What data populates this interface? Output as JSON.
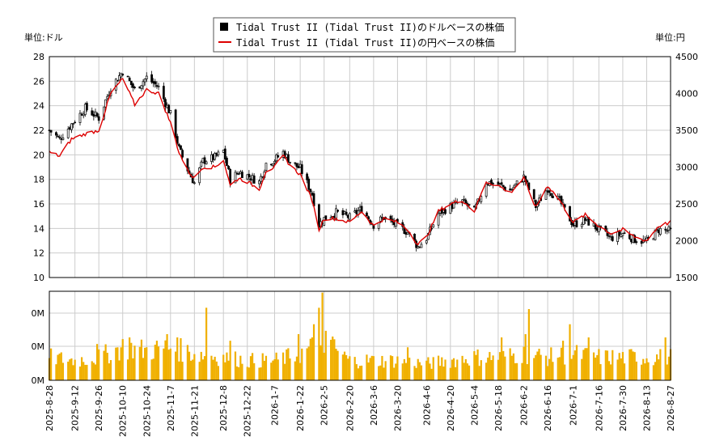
{
  "chart_data": [
    {
      "type": "candlestick+line",
      "legend": [
        {
          "label": "Tidal Trust II (Tidal Trust II)のドルベースの株価",
          "marker": "black-square",
          "color": "#000000"
        },
        {
          "label": "Tidal Trust II (Tidal Trust II)の円ベースの株価",
          "marker": "red-line",
          "color": "#dd0000"
        }
      ],
      "legend_placement": "top-center",
      "left_unit": "単位:ドル",
      "right_unit": "単位:円",
      "y_left": {
        "ylim": [
          10,
          28
        ],
        "ticks": [
          10,
          12,
          14,
          16,
          18,
          20,
          22,
          24,
          26,
          28
        ]
      },
      "y_right": {
        "ylim": [
          1500,
          4500
        ],
        "ticks": [
          1500,
          2000,
          2500,
          3000,
          3500,
          4000,
          4500
        ]
      },
      "x_ticks": [
        "2025-8-28",
        "2025-9-12",
        "2025-9-26",
        "2025-10-10",
        "2025-10-24",
        "2025-11-7",
        "2025-11-21",
        "2025-12-8",
        "2025-12-22",
        "2026-1-7",
        "2026-1-22",
        "2026-2-5",
        "2026-2-20",
        "2026-3-6",
        "2026-3-20",
        "2026-4-6",
        "2026-4-20",
        "2026-5-4",
        "2026-5-18",
        "2026-6-2",
        "2026-6-16",
        "2026-7-1",
        "2026-7-16",
        "2026-7-30",
        "2026-8-13",
        "2026-8-27"
      ],
      "grid": true,
      "usd_close_keypoints": [
        [
          "2025-8-28",
          22.0
        ],
        [
          "2025-9-3",
          21.3
        ],
        [
          "2025-9-10",
          22.5
        ],
        [
          "2025-9-18",
          23.8
        ],
        [
          "2025-9-26",
          23.0
        ],
        [
          "2025-10-3",
          25.5
        ],
        [
          "2025-10-10",
          26.8
        ],
        [
          "2025-10-17",
          25.3
        ],
        [
          "2025-10-24",
          26.3
        ],
        [
          "2025-10-31",
          25.5
        ],
        [
          "2025-11-7",
          23.3
        ],
        [
          "2025-11-12",
          20.5
        ],
        [
          "2025-11-17",
          18.8
        ],
        [
          "2025-11-21",
          17.7
        ],
        [
          "2025-11-26",
          19.5
        ],
        [
          "2025-12-3",
          19.8
        ],
        [
          "2025-12-8",
          20.3
        ],
        [
          "2025-12-12",
          18.0
        ],
        [
          "2025-12-17",
          18.6
        ],
        [
          "2025-12-22",
          18.3
        ],
        [
          "2025-12-29",
          17.8
        ],
        [
          "2026-1-2",
          19.3
        ],
        [
          "2026-1-7",
          19.6
        ],
        [
          "2026-1-12",
          20.2
        ],
        [
          "2026-1-17",
          19.3
        ],
        [
          "2026-1-22",
          18.9
        ],
        [
          "2026-1-29",
          16.8
        ],
        [
          "2026-2-2",
          14.3
        ],
        [
          "2026-2-5",
          14.8
        ],
        [
          "2026-2-12",
          15.3
        ],
        [
          "2026-2-20",
          14.9
        ],
        [
          "2026-2-27",
          15.6
        ],
        [
          "2026-3-6",
          14.3
        ],
        [
          "2026-3-12",
          14.9
        ],
        [
          "2026-3-20",
          14.2
        ],
        [
          "2026-3-26",
          13.7
        ],
        [
          "2026-4-1",
          12.5
        ],
        [
          "2026-4-6",
          13.2
        ],
        [
          "2026-4-13",
          15.2
        ],
        [
          "2026-4-20",
          15.8
        ],
        [
          "2026-4-27",
          16.2
        ],
        [
          "2026-5-4",
          15.4
        ],
        [
          "2026-5-11",
          17.8
        ],
        [
          "2026-5-18",
          17.6
        ],
        [
          "2026-5-25",
          17.1
        ],
        [
          "2026-6-2",
          18.2
        ],
        [
          "2026-6-9",
          15.8
        ],
        [
          "2026-6-16",
          17.3
        ],
        [
          "2026-6-23",
          16.2
        ],
        [
          "2026-7-1",
          14.3
        ],
        [
          "2026-7-8",
          14.7
        ],
        [
          "2026-7-16",
          13.9
        ],
        [
          "2026-7-23",
          13.2
        ],
        [
          "2026-7-30",
          13.6
        ],
        [
          "2026-8-6",
          13.1
        ],
        [
          "2026-8-13",
          12.9
        ],
        [
          "2026-8-20",
          13.9
        ],
        [
          "2026-8-27",
          13.8
        ]
      ],
      "jpy_close_keypoints": [
        [
          "2025-8-28",
          3200
        ],
        [
          "2025-9-3",
          3150
        ],
        [
          "2025-9-10",
          3380
        ],
        [
          "2025-9-18",
          3450
        ],
        [
          "2025-9-26",
          3500
        ],
        [
          "2025-10-3",
          4000
        ],
        [
          "2025-10-10",
          4200
        ],
        [
          "2025-10-17",
          3850
        ],
        [
          "2025-10-24",
          4050
        ],
        [
          "2025-10-31",
          4000
        ],
        [
          "2025-11-7",
          3600
        ],
        [
          "2025-11-12",
          3200
        ],
        [
          "2025-11-17",
          2950
        ],
        [
          "2025-11-21",
          2850
        ],
        [
          "2025-11-26",
          3000
        ],
        [
          "2025-12-3",
          3000
        ],
        [
          "2025-12-8",
          3100
        ],
        [
          "2025-12-12",
          2750
        ],
        [
          "2025-12-17",
          2850
        ],
        [
          "2025-12-22",
          2800
        ],
        [
          "2025-12-29",
          2700
        ],
        [
          "2026-1-2",
          2950
        ],
        [
          "2026-1-7",
          3000
        ],
        [
          "2026-1-12",
          3150
        ],
        [
          "2026-1-17",
          3000
        ],
        [
          "2026-1-22",
          2900
        ],
        [
          "2026-1-29",
          2550
        ],
        [
          "2026-2-2",
          2150
        ],
        [
          "2026-2-5",
          2300
        ],
        [
          "2026-2-12",
          2300
        ],
        [
          "2026-2-20",
          2250
        ],
        [
          "2026-2-27",
          2400
        ],
        [
          "2026-3-6",
          2200
        ],
        [
          "2026-3-12",
          2300
        ],
        [
          "2026-3-20",
          2250
        ],
        [
          "2026-3-26",
          2150
        ],
        [
          "2026-4-1",
          1950
        ],
        [
          "2026-4-6",
          2050
        ],
        [
          "2026-4-13",
          2400
        ],
        [
          "2026-4-20",
          2500
        ],
        [
          "2026-4-27",
          2550
        ],
        [
          "2026-5-4",
          2400
        ],
        [
          "2026-5-11",
          2800
        ],
        [
          "2026-5-18",
          2750
        ],
        [
          "2026-5-25",
          2650
        ],
        [
          "2026-6-2",
          2850
        ],
        [
          "2026-6-9",
          2450
        ],
        [
          "2026-6-16",
          2750
        ],
        [
          "2026-6-23",
          2550
        ],
        [
          "2026-7-1",
          2250
        ],
        [
          "2026-7-8",
          2350
        ],
        [
          "2026-7-16",
          2200
        ],
        [
          "2026-7-23",
          2100
        ],
        [
          "2026-7-30",
          2150
        ],
        [
          "2026-8-6",
          2050
        ],
        [
          "2026-8-13",
          2000
        ],
        [
          "2026-8-20",
          2200
        ],
        [
          "2026-8-27",
          2250
        ]
      ]
    },
    {
      "type": "bar",
      "series_color": "#f0b000",
      "y_tick_labels": [
        "0M",
        "0M",
        "0M"
      ],
      "volume_keypoints": [
        [
          "2025-8-28",
          0.35
        ],
        [
          "2025-9-12",
          0.3
        ],
        [
          "2025-9-26",
          0.35
        ],
        [
          "2025-10-10",
          0.5
        ],
        [
          "2025-10-24",
          0.45
        ],
        [
          "2025-11-7",
          0.5
        ],
        [
          "2025-11-21",
          0.4
        ],
        [
          "2025-12-8",
          0.35
        ],
        [
          "2025-12-22",
          0.3
        ],
        [
          "2026-1-7",
          0.3
        ],
        [
          "2026-1-22",
          0.4
        ],
        [
          "2026-2-5",
          0.6
        ],
        [
          "2026-2-20",
          0.3
        ],
        [
          "2026-3-6",
          0.3
        ],
        [
          "2026-3-20",
          0.3
        ],
        [
          "2026-4-6",
          0.25
        ],
        [
          "2026-4-20",
          0.3
        ],
        [
          "2026-5-4",
          0.35
        ],
        [
          "2026-5-18",
          0.35
        ],
        [
          "2026-6-2",
          0.4
        ],
        [
          "2026-6-16",
          0.35
        ],
        [
          "2026-7-1",
          0.4
        ],
        [
          "2026-7-16",
          0.35
        ],
        [
          "2026-7-30",
          0.35
        ],
        [
          "2026-8-13",
          0.35
        ],
        [
          "2026-8-27",
          0.35
        ]
      ],
      "volume_spikes": [
        [
          "2025-8-30",
          0.6
        ],
        [
          "2025-9-25",
          0.55
        ],
        [
          "2025-10-14",
          0.65
        ],
        [
          "2025-11-5",
          0.7
        ],
        [
          "2025-11-11",
          0.65
        ],
        [
          "2025-11-28",
          1.1
        ],
        [
          "2025-12-12",
          0.6
        ],
        [
          "2026-1-21",
          0.7
        ],
        [
          "2026-1-30",
          0.85
        ],
        [
          "2026-2-2",
          1.1
        ],
        [
          "2026-2-4",
          1.33
        ],
        [
          "2026-2-6",
          0.75
        ],
        [
          "2026-3-26",
          0.5
        ],
        [
          "2026-5-20",
          0.65
        ],
        [
          "2026-6-3",
          0.7
        ],
        [
          "2026-6-5",
          1.08
        ],
        [
          "2026-6-25",
          0.6
        ],
        [
          "2026-6-29",
          0.85
        ],
        [
          "2026-7-10",
          0.65
        ],
        [
          "2026-8-8",
          0.55
        ],
        [
          "2026-8-24",
          0.65
        ]
      ]
    }
  ]
}
